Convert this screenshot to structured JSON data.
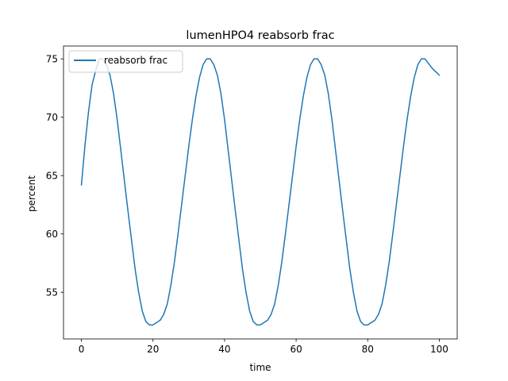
{
  "chart_data": {
    "type": "line",
    "title": "lumenHPO4 reabsorb frac",
    "xlabel": "time",
    "ylabel": "percent",
    "xlim": [
      -5,
      105
    ],
    "ylim": [
      51.0,
      76.1
    ],
    "xticks": [
      0,
      20,
      40,
      60,
      80,
      100
    ],
    "yticks": [
      55,
      60,
      65,
      70,
      75
    ],
    "grid": false,
    "legend": {
      "position": "top-left"
    },
    "colors": {
      "series": "#1f77b4"
    },
    "series": [
      {
        "name": "reabsorb frac",
        "x": [
          0,
          1,
          2,
          3,
          4,
          5,
          6,
          7,
          8,
          9,
          10,
          11,
          12,
          13,
          14,
          15,
          16,
          17,
          18,
          19,
          20,
          21,
          22,
          23,
          24,
          25,
          26,
          27,
          28,
          29,
          30,
          31,
          32,
          33,
          34,
          35,
          36,
          37,
          38,
          39,
          40,
          41,
          42,
          43,
          44,
          45,
          46,
          47,
          48,
          49,
          50,
          51,
          52,
          53,
          54,
          55,
          56,
          57,
          58,
          59,
          60,
          61,
          62,
          63,
          64,
          65,
          66,
          67,
          68,
          69,
          70,
          71,
          72,
          73,
          74,
          75,
          76,
          77,
          78,
          79,
          80,
          81,
          82,
          83,
          84,
          85,
          86,
          87,
          88,
          89,
          90,
          91,
          92,
          93,
          94,
          95,
          96,
          97,
          98,
          99,
          100
        ],
        "y": [
          64.2,
          67.6,
          70.5,
          72.8,
          74.0,
          75.0,
          75.0,
          74.5,
          73.6,
          72.0,
          69.8,
          67.2,
          64.6,
          62.0,
          59.5,
          57.0,
          55.0,
          53.4,
          52.5,
          52.2,
          52.2,
          52.4,
          52.6,
          53.1,
          54.0,
          55.6,
          57.6,
          60.0,
          62.5,
          65.0,
          67.5,
          69.8,
          71.8,
          73.4,
          74.5,
          75.0,
          75.0,
          74.5,
          73.6,
          72.0,
          69.8,
          67.2,
          64.6,
          62.0,
          59.5,
          57.0,
          55.0,
          53.4,
          52.5,
          52.2,
          52.2,
          52.4,
          52.6,
          53.1,
          54.0,
          55.6,
          57.6,
          60.0,
          62.5,
          65.0,
          67.5,
          69.8,
          71.8,
          73.4,
          74.5,
          75.0,
          75.0,
          74.5,
          73.6,
          72.0,
          69.8,
          67.2,
          64.6,
          62.0,
          59.5,
          57.0,
          55.0,
          53.4,
          52.5,
          52.2,
          52.2,
          52.4,
          52.6,
          53.1,
          54.0,
          55.6,
          57.6,
          60.0,
          62.5,
          65.0,
          67.5,
          69.8,
          71.8,
          73.4,
          74.5,
          75.0,
          75.0,
          74.6,
          74.2,
          73.9,
          73.6
        ]
      }
    ]
  }
}
